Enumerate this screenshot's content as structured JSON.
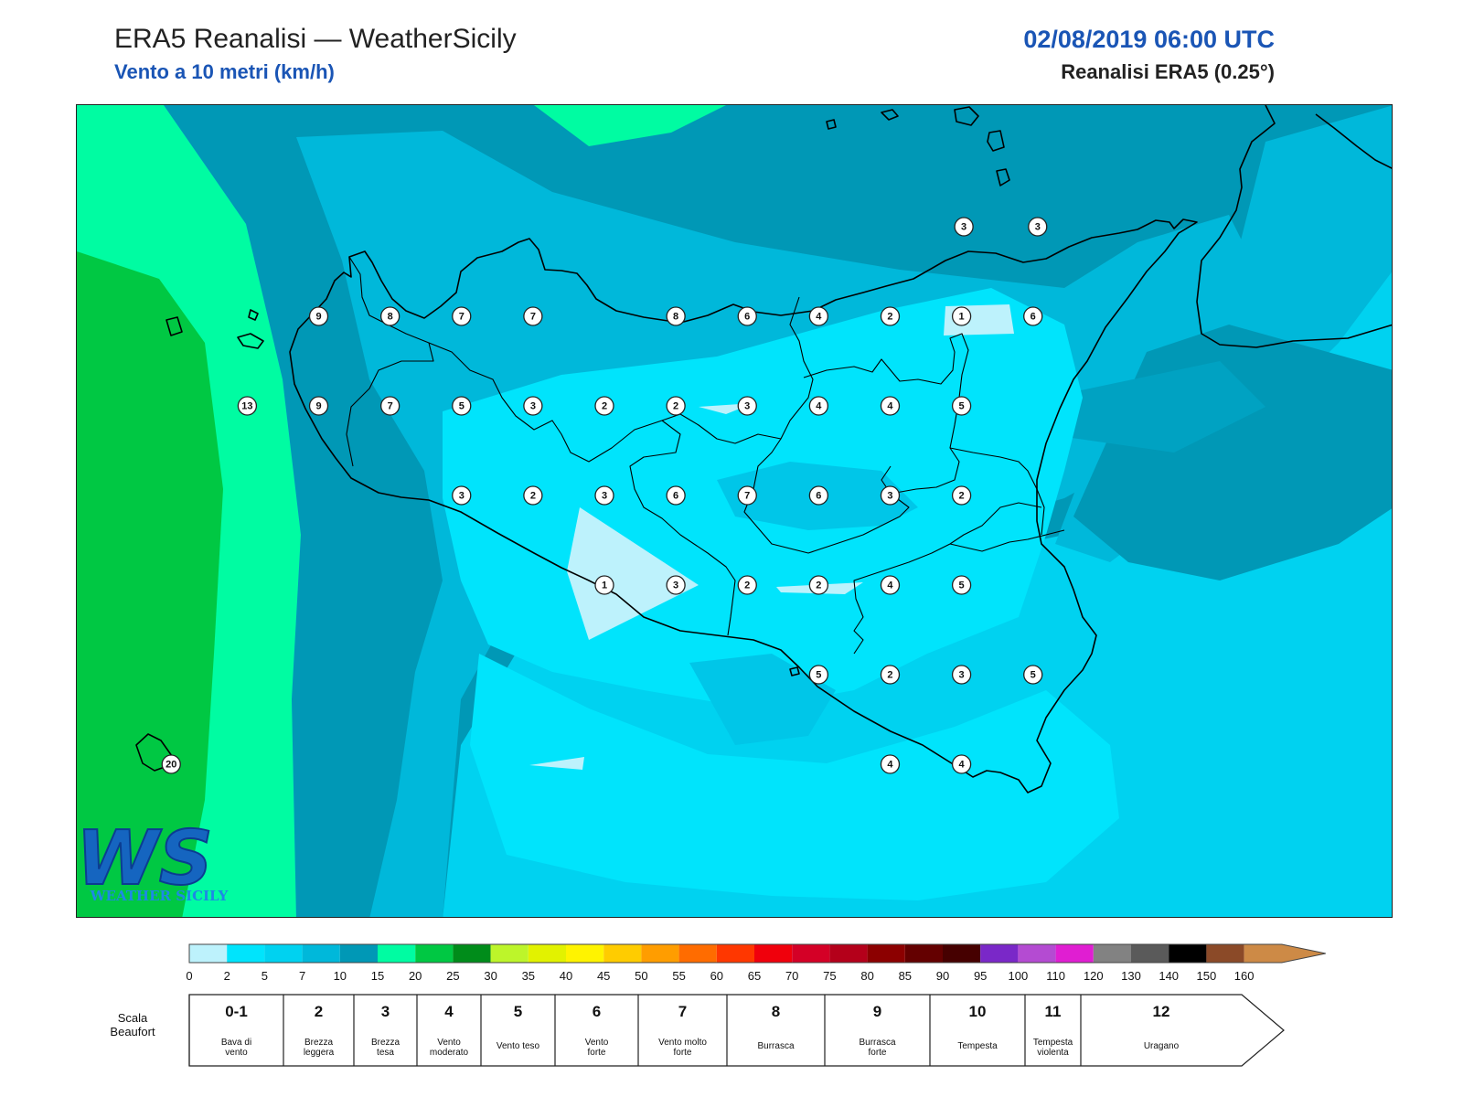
{
  "header": {
    "title": "ERA5 Reanalisi — WeatherSicily",
    "subtitle": "Vento a 10 metri (km/h)",
    "datetime": "02/08/2019 06:00 UTC",
    "model": "Reanalisi ERA5 (0.25°)"
  },
  "logo": {
    "initials": "WS",
    "name": "WEATHER SICILY"
  },
  "stations": [
    {
      "value": "3",
      "lon": 15.56,
      "lat": 38.27
    },
    {
      "value": "3",
      "lon": 15.88,
      "lat": 38.27
    },
    {
      "value": "9",
      "lon": 12.76,
      "lat": 38.02
    },
    {
      "value": "8",
      "lon": 13.07,
      "lat": 38.02
    },
    {
      "value": "7",
      "lon": 13.38,
      "lat": 38.02
    },
    {
      "value": "7",
      "lon": 13.69,
      "lat": 38.02
    },
    {
      "value": "8",
      "lon": 14.31,
      "lat": 38.02
    },
    {
      "value": "6",
      "lon": 14.62,
      "lat": 38.02
    },
    {
      "value": "4",
      "lon": 14.93,
      "lat": 38.02
    },
    {
      "value": "2",
      "lon": 15.24,
      "lat": 38.02
    },
    {
      "value": "1",
      "lon": 15.55,
      "lat": 38.02
    },
    {
      "value": "6",
      "lon": 15.86,
      "lat": 38.02
    },
    {
      "value": "13",
      "lon": 12.45,
      "lat": 37.77
    },
    {
      "value": "9",
      "lon": 12.76,
      "lat": 37.77
    },
    {
      "value": "7",
      "lon": 13.07,
      "lat": 37.77
    },
    {
      "value": "5",
      "lon": 13.38,
      "lat": 37.77
    },
    {
      "value": "3",
      "lon": 13.69,
      "lat": 37.77
    },
    {
      "value": "2",
      "lon": 14.0,
      "lat": 37.77
    },
    {
      "value": "2",
      "lon": 14.31,
      "lat": 37.77
    },
    {
      "value": "3",
      "lon": 14.62,
      "lat": 37.77
    },
    {
      "value": "4",
      "lon": 14.93,
      "lat": 37.77
    },
    {
      "value": "4",
      "lon": 15.24,
      "lat": 37.77
    },
    {
      "value": "5",
      "lon": 15.55,
      "lat": 37.77
    },
    {
      "value": "3",
      "lon": 13.38,
      "lat": 37.52
    },
    {
      "value": "2",
      "lon": 13.69,
      "lat": 37.52
    },
    {
      "value": "3",
      "lon": 14.0,
      "lat": 37.52
    },
    {
      "value": "6",
      "lon": 14.31,
      "lat": 37.52
    },
    {
      "value": "7",
      "lon": 14.62,
      "lat": 37.52
    },
    {
      "value": "6",
      "lon": 14.93,
      "lat": 37.52
    },
    {
      "value": "3",
      "lon": 15.24,
      "lat": 37.52
    },
    {
      "value": "2",
      "lon": 15.55,
      "lat": 37.52
    },
    {
      "value": "1",
      "lon": 14.0,
      "lat": 37.27
    },
    {
      "value": "3",
      "lon": 14.31,
      "lat": 37.27
    },
    {
      "value": "2",
      "lon": 14.62,
      "lat": 37.27
    },
    {
      "value": "2",
      "lon": 14.93,
      "lat": 37.27
    },
    {
      "value": "4",
      "lon": 15.24,
      "lat": 37.27
    },
    {
      "value": "5",
      "lon": 15.55,
      "lat": 37.27
    },
    {
      "value": "5",
      "lon": 14.93,
      "lat": 37.02
    },
    {
      "value": "2",
      "lon": 15.24,
      "lat": 37.02
    },
    {
      "value": "3",
      "lon": 15.55,
      "lat": 37.02
    },
    {
      "value": "5",
      "lon": 15.86,
      "lat": 37.02
    },
    {
      "value": "4",
      "lon": 15.24,
      "lat": 36.77
    },
    {
      "value": "4",
      "lon": 15.55,
      "lat": 36.77
    },
    {
      "value": "20",
      "lon": 12.12,
      "lat": 36.77
    }
  ],
  "colorbar": {
    "colors": [
      "#bdf2fc",
      "#00e4fc",
      "#00d2f0",
      "#00b8da",
      "#0098b6",
      "#00fca2",
      "#00c843",
      "#008c1a",
      "#bdf52a",
      "#e2f200",
      "#fff300",
      "#ffcc00",
      "#ff9d00",
      "#ff6c00",
      "#ff3700",
      "#f0000c",
      "#d40026",
      "#b4001a",
      "#8c0000",
      "#640000",
      "#460000",
      "#7a28c8",
      "#b44bd2",
      "#e01ed2",
      "#828282",
      "#5a5a5a",
      "#000000",
      "#8b4a28",
      "#cd8a46"
    ],
    "ticks": [
      "0",
      "2",
      "5",
      "7",
      "10",
      "15",
      "20",
      "25",
      "30",
      "35",
      "40",
      "45",
      "50",
      "55",
      "60",
      "65",
      "70",
      "75",
      "80",
      "85",
      "90",
      "95",
      "100",
      "110",
      "120",
      "130",
      "140",
      "150",
      "160"
    ]
  },
  "beaufort": {
    "label_line1": "Scala",
    "label_line2": "Beaufort",
    "cells": [
      {
        "num": "0-1",
        "desc": [
          "Bava di",
          "vento"
        ]
      },
      {
        "num": "2",
        "desc": [
          "Brezza",
          "leggera"
        ]
      },
      {
        "num": "3",
        "desc": [
          "Brezza",
          "tesa"
        ]
      },
      {
        "num": "4",
        "desc": [
          "Vento",
          "moderato"
        ]
      },
      {
        "num": "5",
        "desc": [
          "Vento teso"
        ]
      },
      {
        "num": "6",
        "desc": [
          "Vento",
          "forte"
        ]
      },
      {
        "num": "7",
        "desc": [
          "Vento molto",
          "forte"
        ]
      },
      {
        "num": "8",
        "desc": [
          "Burrasca"
        ]
      },
      {
        "num": "9",
        "desc": [
          "Burrasca",
          "forte"
        ]
      },
      {
        "num": "10",
        "desc": [
          "Tempesta"
        ]
      },
      {
        "num": "11",
        "desc": [
          "Tempesta",
          "violenta"
        ]
      },
      {
        "num": "12",
        "desc": [
          "Uragano"
        ]
      }
    ]
  }
}
